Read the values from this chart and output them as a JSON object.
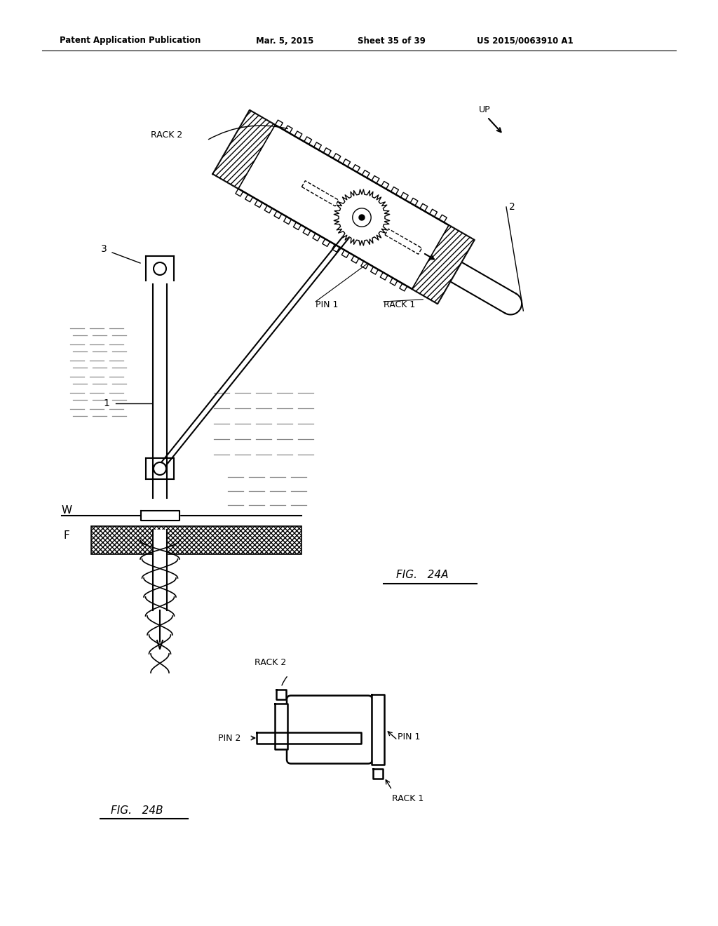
{
  "bg_color": "#ffffff",
  "header_text": "Patent Application Publication",
  "header_date": "Mar. 5, 2015",
  "header_sheet": "Sheet 35 of 39",
  "header_patent": "US 2015/0063910 A1",
  "fig_label_24a": "FIG.   24A",
  "fig_label_24b": "FIG.   24B",
  "line_color": "#000000"
}
